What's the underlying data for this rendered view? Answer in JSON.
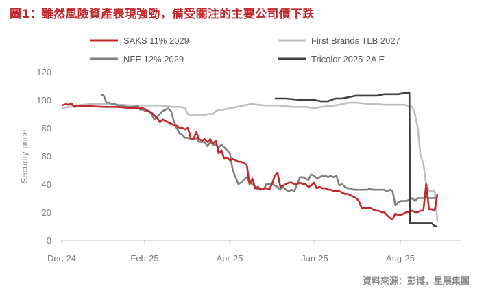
{
  "title": "圖1：雖然風險資產表現強勁，備受關注的主要公司債下跌",
  "source": "資料來源：彭博，星展集團",
  "chart_data": {
    "type": "line",
    "ylabel": "Security price",
    "ylim": [
      0,
      120
    ],
    "y_ticks": [
      "0",
      "20",
      "40",
      "60",
      "80",
      "100",
      "120"
    ],
    "x_ticks": [
      "Dec-24",
      "Feb-25",
      "Apr-25",
      "Jun-25",
      "Aug-25"
    ],
    "legend": [
      {
        "name": "SAKS 11% 2029",
        "color": "#c1272d"
      },
      {
        "name": "First Brands TLB 2027",
        "color": "#bfbfbf"
      },
      {
        "name": "NFE 12% 2029",
        "color": "#7f7f7f"
      },
      {
        "name": "Tricolor 2025-2A E",
        "color": "#404040"
      }
    ],
    "series": [
      {
        "name": "SAKS 11% 2029",
        "color": "#c1272d",
        "x": [
          0,
          3,
          5,
          7,
          9,
          11,
          14,
          20,
          30,
          40,
          50,
          55,
          58,
          60,
          62,
          64,
          66,
          68,
          70,
          72,
          74,
          76,
          78,
          80,
          82,
          84,
          86,
          88,
          90,
          92,
          94,
          96,
          98,
          100,
          102,
          104,
          106,
          108,
          110,
          112,
          114,
          116,
          118,
          120,
          122,
          124,
          126,
          128,
          130,
          132,
          134,
          136,
          138,
          140,
          142,
          144,
          146,
          148,
          150,
          152,
          154,
          156,
          158,
          160,
          162,
          164,
          166,
          168,
          170,
          172,
          174,
          176,
          178,
          180,
          182,
          184,
          186,
          188,
          190,
          192,
          194,
          196,
          198,
          200,
          202,
          204,
          206,
          208,
          210,
          212,
          214,
          216,
          218,
          220,
          222,
          224,
          226,
          228,
          230,
          232,
          234,
          236,
          238,
          240,
          242,
          244,
          246,
          248,
          250,
          252,
          254,
          256,
          258,
          260,
          262,
          264,
          266,
          268
        ],
        "y": [
          96,
          97,
          96.5,
          97.5,
          95,
          96,
          95.5,
          95.5,
          95,
          95,
          94,
          94,
          94,
          93,
          92,
          91,
          89,
          87,
          84,
          86,
          85,
          84,
          83,
          82,
          82,
          80,
          80,
          79,
          80,
          73,
          72,
          77,
          72,
          71,
          72,
          70,
          72,
          69,
          71,
          62,
          64,
          58,
          59,
          57,
          58,
          57,
          56,
          56,
          55,
          54,
          40,
          44,
          37,
          38,
          36,
          37,
          37,
          36,
          40,
          46,
          48,
          38,
          39,
          40,
          41,
          41,
          40,
          40,
          41,
          40,
          40,
          38,
          39,
          41,
          37,
          38,
          37,
          37,
          36,
          36,
          35,
          35,
          35,
          34,
          33,
          33,
          32,
          31,
          30,
          28,
          23,
          23,
          23,
          23,
          22,
          21,
          21,
          20,
          20,
          18,
          16,
          15,
          19,
          18,
          18,
          19,
          20,
          20,
          21,
          20,
          20,
          21,
          21,
          40,
          22,
          22,
          21,
          33
        ]
      },
      {
        "name": "First Brands TLB 2027",
        "color": "#bfbfbf",
        "x": [
          0,
          5,
          10,
          20,
          30,
          40,
          50,
          60,
          70,
          80,
          85,
          88,
          90,
          92,
          95,
          100,
          105,
          108,
          110,
          112,
          115,
          120,
          125,
          130,
          135,
          140,
          145,
          150,
          155,
          160,
          165,
          170,
          175,
          180,
          185,
          190,
          195,
          200,
          205,
          210,
          215,
          220,
          225,
          230,
          235,
          240,
          245,
          250,
          252,
          254,
          256,
          258,
          260,
          262,
          264,
          266,
          268
        ],
        "y": [
          94,
          95,
          96,
          97,
          97,
          96.5,
          96,
          96,
          96,
          95,
          95,
          94,
          90,
          89,
          89,
          89,
          90,
          90,
          92,
          93,
          93,
          94,
          95,
          96,
          97,
          96.5,
          96,
          96,
          96,
          95.5,
          95,
          95,
          95,
          94,
          95,
          95.5,
          96,
          97,
          98,
          98,
          97.5,
          97,
          97,
          96.5,
          96.5,
          96.5,
          96.5,
          95,
          90,
          80,
          60,
          55,
          40,
          35,
          35,
          35,
          13
        ]
      },
      {
        "name": "NFE 12% 2029",
        "color": "#7f7f7f",
        "x": [
          28,
          30,
          32,
          34,
          36,
          38,
          40,
          42,
          44,
          46,
          48,
          50,
          52,
          54,
          56,
          58,
          60,
          62,
          64,
          66,
          68,
          70,
          72,
          74,
          76,
          78,
          80,
          82,
          84,
          86,
          88,
          90,
          92,
          94,
          96,
          98,
          100,
          102,
          104,
          106,
          108,
          110,
          112,
          114,
          116,
          118,
          120,
          122,
          124,
          126,
          128,
          130,
          132,
          134,
          136,
          138,
          140,
          142,
          144,
          146,
          148,
          150,
          152,
          154,
          156,
          158,
          160,
          162,
          164,
          166,
          168,
          170,
          172,
          174,
          176,
          178,
          180,
          182,
          184,
          186,
          188,
          190,
          192,
          194,
          196,
          198,
          200,
          202,
          204,
          206,
          208,
          210,
          212,
          214,
          216,
          218,
          220,
          222,
          224,
          226,
          228,
          230,
          232,
          234,
          236,
          238,
          240,
          242,
          244,
          246,
          248,
          250,
          252,
          254,
          256,
          258,
          260,
          262,
          264,
          266,
          268
        ],
        "y": [
          104,
          103,
          98,
          98,
          97,
          97,
          96,
          96,
          96,
          95,
          95,
          95,
          95,
          96,
          93,
          93,
          92,
          92,
          90,
          86,
          88,
          90,
          92,
          93,
          94,
          92,
          85,
          80,
          76,
          75,
          73,
          73,
          72,
          72,
          73,
          70,
          70,
          70,
          67,
          70,
          68,
          68,
          66,
          68,
          66,
          64,
          62,
          50,
          45,
          40,
          41,
          43,
          45,
          41,
          40,
          38,
          36,
          37,
          36,
          40,
          40,
          40,
          39,
          38,
          36,
          38,
          36,
          35,
          36,
          35,
          40,
          45,
          45,
          44,
          43,
          47,
          46,
          44,
          45,
          46,
          46,
          45,
          46,
          45,
          46,
          39,
          40,
          38,
          37,
          37,
          36,
          36,
          36,
          36,
          36,
          36,
          37,
          36,
          36,
          36,
          36,
          36,
          35,
          36,
          35,
          25,
          27,
          28,
          28,
          28,
          29,
          30,
          28,
          30,
          30,
          30,
          31,
          30,
          30,
          30,
          31
        ]
      },
      {
        "name": "Tricolor 2025-2A E",
        "color": "#404040",
        "x": [
          152,
          160,
          170,
          180,
          185,
          190,
          195,
          200,
          205,
          210,
          215,
          220,
          225,
          230,
          235,
          240,
          245,
          248,
          248.5,
          252,
          256,
          260,
          264,
          266,
          268
        ],
        "y": [
          101,
          101,
          100,
          100,
          99,
          99,
          101,
          101,
          102,
          103,
          103,
          103,
          103,
          104,
          104,
          104,
          105,
          105,
          12,
          12,
          12,
          12,
          12,
          10,
          10
        ]
      }
    ]
  }
}
